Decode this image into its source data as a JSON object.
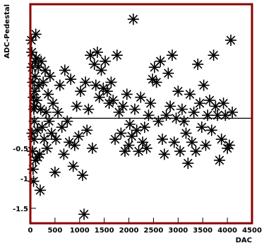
{
  "chart_data": {
    "type": "scatter",
    "title": "",
    "xlabel": "DAC",
    "ylabel": "ADC-Pedestal",
    "xlim": [
      0,
      4500
    ],
    "ylim": [
      -1.75,
      1.9
    ],
    "xticks": [
      0,
      500,
      1000,
      1500,
      2000,
      2500,
      3000,
      3500,
      4000,
      4500
    ],
    "xtick_labels": [
      "0",
      "500",
      "1000",
      "1500",
      "2000",
      "2500",
      "3000",
      "3500",
      "4000",
      "4500"
    ],
    "yticks": [
      -1.5,
      -1,
      -0.5,
      0,
      0.5,
      1
    ],
    "ytick_labels": [
      "-1.5",
      "-1",
      "-0.5",
      "",
      "",
      ""
    ],
    "hline": 0.0,
    "marker": "asterisk",
    "frame_color": "#8b0000",
    "series": [
      {
        "name": "",
        "points": [
          [
            20,
            1.3
          ],
          [
            30,
            1.1
          ],
          [
            40,
            0.85
          ],
          [
            50,
            0.6
          ],
          [
            60,
            0.35
          ],
          [
            70,
            0.15
          ],
          [
            80,
            -0.05
          ],
          [
            90,
            0.45
          ],
          [
            100,
            0.95
          ],
          [
            110,
            1.4
          ],
          [
            35,
            -0.25
          ],
          [
            45,
            -0.55
          ],
          [
            55,
            -0.85
          ],
          [
            65,
            -1.05
          ],
          [
            75,
            -0.35
          ],
          [
            85,
            0.2
          ],
          [
            95,
            0.7
          ],
          [
            105,
            -0.7
          ],
          [
            120,
            1.0
          ],
          [
            130,
            0.3
          ],
          [
            140,
            -0.2
          ],
          [
            150,
            -0.65
          ],
          [
            160,
            0.85
          ],
          [
            175,
            0.55
          ],
          [
            190,
            -0.6
          ],
          [
            200,
            -1.2
          ],
          [
            210,
            0.15
          ],
          [
            220,
            0.95
          ],
          [
            240,
            -0.15
          ],
          [
            260,
            0.6
          ],
          [
            280,
            -0.35
          ],
          [
            300,
            0.8
          ],
          [
            320,
            0.1
          ],
          [
            340,
            -0.5
          ],
          [
            360,
            0.4
          ],
          [
            380,
            -0.05
          ],
          [
            400,
            0.7
          ],
          [
            430,
            -0.25
          ],
          [
            460,
            0.25
          ],
          [
            500,
            -0.9
          ],
          [
            520,
            -0.35
          ],
          [
            560,
            0.1
          ],
          [
            600,
            0.55
          ],
          [
            640,
            -0.15
          ],
          [
            680,
            -0.6
          ],
          [
            700,
            0.8
          ],
          [
            750,
            -0.05
          ],
          [
            790,
            -0.4
          ],
          [
            820,
            0.65
          ],
          [
            870,
            -0.8
          ],
          [
            900,
            -0.45
          ],
          [
            940,
            0.2
          ],
          [
            980,
            -0.3
          ],
          [
            1020,
            0.45
          ],
          [
            1060,
            -0.95
          ],
          [
            1090,
            -1.6
          ],
          [
            1120,
            0.6
          ],
          [
            1150,
            -0.2
          ],
          [
            1180,
            0.15
          ],
          [
            1220,
            1.05
          ],
          [
            1260,
            -0.5
          ],
          [
            1300,
            0.9
          ],
          [
            1330,
            0.55
          ],
          [
            1360,
            1.1
          ],
          [
            1400,
            0.35
          ],
          [
            1440,
            0.8
          ],
          [
            1480,
            0.5
          ],
          [
            1520,
            0.95
          ],
          [
            1560,
            0.45
          ],
          [
            1600,
            0.25
          ],
          [
            1640,
            0.6
          ],
          [
            1680,
            0.3
          ],
          [
            1720,
            -0.35
          ],
          [
            1760,
            1.05
          ],
          [
            1800,
            0.1
          ],
          [
            1840,
            -0.25
          ],
          [
            1880,
            0.2
          ],
          [
            1920,
            -0.55
          ],
          [
            1960,
            0.4
          ],
          [
            2000,
            -0.45
          ],
          [
            2020,
            -0.1
          ],
          [
            2060,
            -0.3
          ],
          [
            2090,
            1.65
          ],
          [
            2120,
            0.15
          ],
          [
            2160,
            -0.2
          ],
          [
            2200,
            -0.55
          ],
          [
            2240,
            0.35
          ],
          [
            2280,
            -0.4
          ],
          [
            2320,
            -0.15
          ],
          [
            2360,
            -0.5
          ],
          [
            2400,
            0.05
          ],
          [
            2440,
            0.25
          ],
          [
            2480,
            0.65
          ],
          [
            2520,
            0.85
          ],
          [
            2560,
            0.6
          ],
          [
            2600,
            -0.05
          ],
          [
            2640,
            0.95
          ],
          [
            2680,
            -0.35
          ],
          [
            2720,
            -0.6
          ],
          [
            2760,
            0.05
          ],
          [
            2800,
            0.75
          ],
          [
            2840,
            0.2
          ],
          [
            2880,
            1.05
          ],
          [
            2920,
            -0.4
          ],
          [
            2960,
            0.0
          ],
          [
            3000,
            0.45
          ],
          [
            3040,
            -0.55
          ],
          [
            3080,
            0.15
          ],
          [
            3120,
            -0.05
          ],
          [
            3160,
            -0.25
          ],
          [
            3200,
            -0.75
          ],
          [
            3240,
            0.4
          ],
          [
            3280,
            -0.4
          ],
          [
            3320,
            0.1
          ],
          [
            3360,
            -0.55
          ],
          [
            3400,
            0.9
          ],
          [
            3440,
            0.25
          ],
          [
            3480,
            -0.15
          ],
          [
            3520,
            0.55
          ],
          [
            3560,
            -0.45
          ],
          [
            3600,
            0.05
          ],
          [
            3640,
            0.3
          ],
          [
            3680,
            -0.2
          ],
          [
            3720,
            1.05
          ],
          [
            3760,
            0.2
          ],
          [
            3800,
            0.05
          ],
          [
            3840,
            -0.7
          ],
          [
            3880,
            -0.35
          ],
          [
            3920,
            0.25
          ],
          [
            3960,
            0.05
          ],
          [
            4000,
            -0.5
          ],
          [
            4040,
            -0.45
          ],
          [
            4070,
            1.3
          ],
          [
            4100,
            0.1
          ]
        ]
      }
    ]
  }
}
